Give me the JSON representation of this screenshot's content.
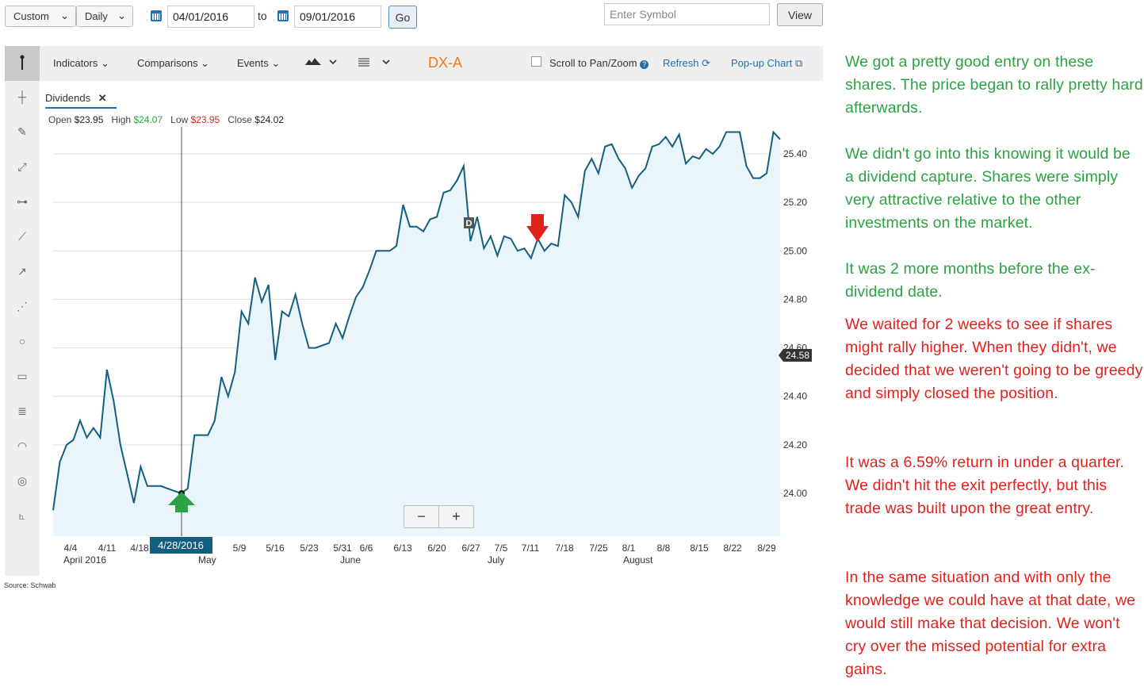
{
  "controls": {
    "range_select": "Custom",
    "interval_select": "Daily",
    "start_date": "04/01/2016",
    "to_label": "to",
    "end_date": "09/01/2016",
    "go_label": "Go",
    "symbol_placeholder": "Enter Symbol",
    "view_label": "View"
  },
  "toolbar": {
    "indicators": "Indicators",
    "comparisons": "Comparisons",
    "events": "Events",
    "symbol": "DX-A",
    "scroll_label": "Scroll to Pan/Zoom",
    "refresh": "Refresh",
    "popup": "Pop-up Chart"
  },
  "tab": {
    "label": "Dividends"
  },
  "ohlc": {
    "open_label": "Open",
    "open": "$23.95",
    "high_label": "High",
    "high": "$24.07",
    "low_label": "Low",
    "low": "$23.95",
    "close_label": "Close",
    "close": "$24.02"
  },
  "zoom": {
    "minus": "−",
    "plus": "+"
  },
  "source": "Source: Schwab",
  "colors": {
    "line": "#135f80",
    "fill": "#e9f4fb",
    "entry_arrow": "#2ca242",
    "exit_arrow": "#e0221d",
    "note_green": "#2ca242",
    "note_red": "#e0221d"
  },
  "chart_data": {
    "type": "area",
    "title": "DX-A",
    "ylim": [
      23.9,
      25.55
    ],
    "y_ticks": [
      24.0,
      24.2,
      24.4,
      24.6,
      24.8,
      25.0,
      25.2,
      25.4
    ],
    "y_tick_labels": [
      "24.00",
      "24.20",
      "24.40",
      "24.60",
      "24.80",
      "25.00",
      "25.20",
      "25.40"
    ],
    "x_tick_labels": [
      "4/4",
      "4/11",
      "4/18",
      "5/9",
      "5/16",
      "5/23",
      "5/31",
      "6/6",
      "6/13",
      "6/20",
      "6/27",
      "7/5",
      "7/11",
      "7/18",
      "7/25",
      "8/1",
      "8/8",
      "8/15",
      "8/22",
      "8/29"
    ],
    "month_labels": [
      "April 2016",
      "May",
      "June",
      "July",
      "August"
    ],
    "crosshair_label": "4/28/2016",
    "last_price_label": "24.58",
    "dividend_marker": "D",
    "series": [
      {
        "values": [
          23.93,
          24.13,
          24.2,
          24.22,
          24.3,
          24.23,
          24.27,
          24.23,
          24.51,
          24.38,
          24.2,
          24.08,
          23.96,
          24.11,
          24.03,
          24.03,
          24.03,
          24.02,
          24.01,
          24.0,
          24.02,
          24.24,
          24.24,
          24.24,
          24.3,
          24.48,
          24.4,
          24.5,
          24.75,
          24.7,
          24.89,
          24.79,
          24.86,
          24.55,
          24.75,
          24.73,
          24.82,
          24.7,
          24.6,
          24.6,
          24.61,
          24.62,
          24.7,
          24.64,
          24.73,
          24.81,
          24.85,
          24.92,
          25.0,
          25.0,
          25.0,
          25.02,
          25.19,
          25.1,
          25.1,
          25.08,
          25.13,
          25.14,
          25.24,
          25.25,
          25.29,
          25.35,
          25.04,
          25.14,
          25.01,
          25.06,
          24.98,
          25.06,
          25.05,
          25.0,
          25.01,
          24.97,
          25.05,
          25.0,
          25.03,
          25.02,
          25.23,
          25.2,
          25.14,
          25.33,
          25.38,
          25.32,
          25.43,
          25.44,
          25.38,
          25.34,
          25.26,
          25.31,
          25.34,
          25.43,
          25.44,
          25.47,
          25.43,
          25.48,
          25.36,
          25.39,
          25.38,
          25.42,
          25.4,
          25.43,
          25.49,
          25.49,
          25.49,
          25.35,
          25.3,
          25.3,
          25.32,
          25.49,
          25.46
        ]
      }
    ],
    "annotations": [
      {
        "type": "entry-arrow",
        "date": "4/28/2016",
        "value": 24.02
      },
      {
        "type": "exit-arrow",
        "date": "7/13/2016",
        "value": 25.05
      }
    ]
  },
  "notes": [
    {
      "color": "green",
      "text": "We got a pretty good entry on these shares. The price began to rally pretty hard afterwards."
    },
    {
      "color": "green",
      "text": "We didn't go into this knowing it would be a dividend capture. Shares were simply very attractive relative to the other investments on the market."
    },
    {
      "color": "green",
      "text": "It was 2 more months before the ex-dividend date."
    },
    {
      "color": "red",
      "text": "We waited for 2 weeks to see if shares might rally higher. When they didn't, we decided that we weren't going to be greedy and simply closed the position."
    },
    {
      "color": "red",
      "text": "It was a 6.59% return in under a quarter. We didn't hit the exit perfectly, but this trade was built upon the great entry."
    },
    {
      "color": "red",
      "text": "In the same situation and with only the knowledge we could have at that date, we would still make that decision. We won't cry over the missed potential for extra gains."
    }
  ]
}
